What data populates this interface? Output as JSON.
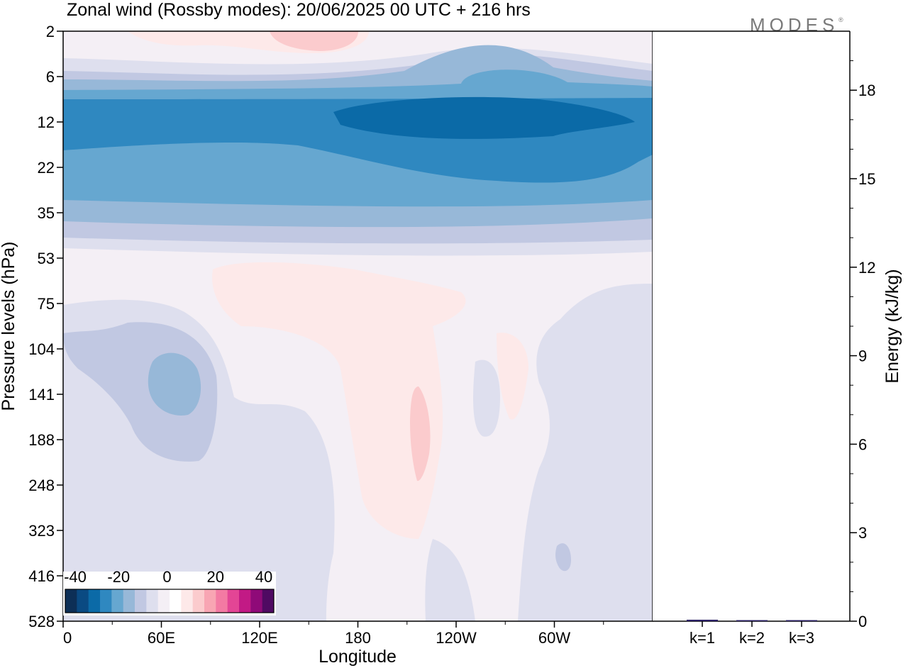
{
  "title": "Zonal wind (Rossby modes):  20/06/2025  00 UTC  + 216 hrs",
  "logo": "MODES",
  "logo_mark": "®",
  "chart_data": [
    {
      "type": "heatmap",
      "xlabel": "Longitude",
      "ylabel": "Pressure levels (hPa)",
      "x_ticks": [
        "0",
        "60E",
        "120E",
        "180",
        "120W",
        "60W"
      ],
      "y_ticks": [
        "2",
        "6",
        "12",
        "22",
        "35",
        "53",
        "75",
        "104",
        "141",
        "188",
        "248",
        "323",
        "416",
        "528"
      ],
      "ylim": [
        2,
        528
      ],
      "colorbar": {
        "tick_labels": [
          "-40",
          "-20",
          "0",
          "20",
          "40"
        ],
        "colors": [
          "#0d2f56",
          "#0a4a82",
          "#0b6aa7",
          "#2f88c0",
          "#66a7d0",
          "#97b8d8",
          "#c1c8e2",
          "#dedfee",
          "#f4eff5",
          "#ffffff",
          "#fde9e9",
          "#fbcbcd",
          "#f8a5b3",
          "#f37aa3",
          "#e34595",
          "#c21a85",
          "#8f0a78",
          "#4f0a62"
        ]
      },
      "regions": [
        {
          "level": "-35",
          "where": "around 12-16 hPa, 175E-75W"
        },
        {
          "level": "-30",
          "where": "band 10-20 hPa all longitudes"
        },
        {
          "level": "-25",
          "where": "band 8-28 hPa, 0-90E and 150W-30W"
        },
        {
          "level": "-20",
          "where": "band 7-35 hPa"
        },
        {
          "level": "-15",
          "where": "near 130-150 hPa, 55E-70E"
        },
        {
          "level": "5",
          "where": "55-300 hPa, 90E-150W; 2-5 hPa near 120E-180"
        },
        {
          "level": "10",
          "where": "around 150-250 hPa, 155W-145W"
        }
      ]
    },
    {
      "type": "bar",
      "ylabel": "Energy (kJ/kg)",
      "categories": [
        "k=1",
        "k=2",
        "k=3"
      ],
      "values": [
        0.05,
        0.02,
        0.01
      ],
      "ylim": [
        0,
        20
      ],
      "y_ticks": [
        "0",
        "3",
        "6",
        "9",
        "12",
        "15",
        "18"
      ]
    }
  ]
}
